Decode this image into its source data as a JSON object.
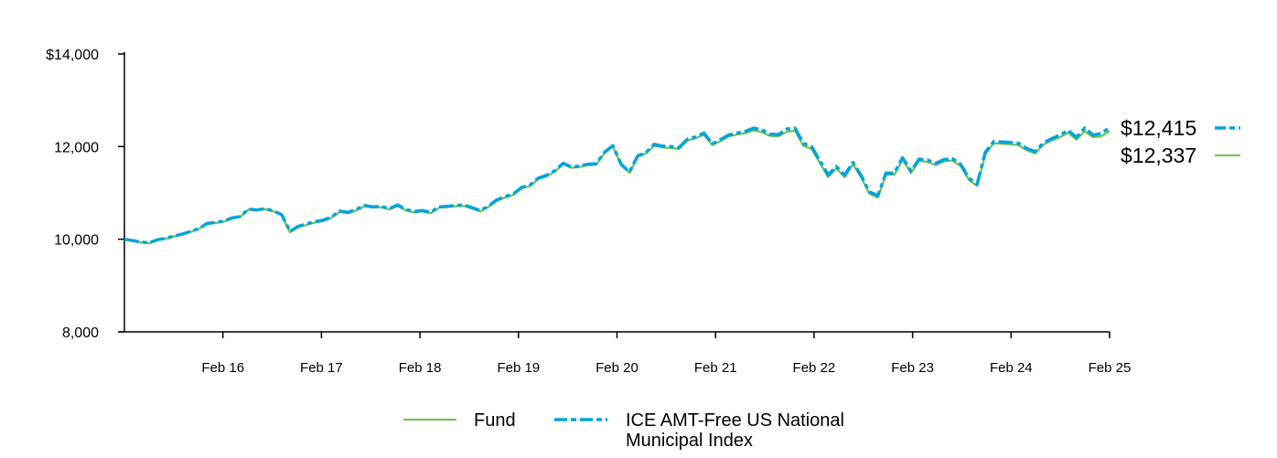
{
  "chart_data": {
    "type": "line",
    "title": "",
    "xlabel": "",
    "ylabel": "",
    "ylim": [
      8000,
      14000
    ],
    "y_ticks": [
      {
        "value": 8000,
        "label": "8,000"
      },
      {
        "value": 10000,
        "label": "10,000"
      },
      {
        "value": 12000,
        "label": "12,000"
      },
      {
        "value": 14000,
        "label": "$14,000"
      }
    ],
    "x_range": [
      0,
      120
    ],
    "x_ticks": [
      {
        "value": 12,
        "label": "Feb 16"
      },
      {
        "value": 24,
        "label": "Feb 17"
      },
      {
        "value": 36,
        "label": "Feb 18"
      },
      {
        "value": 48,
        "label": "Feb 19"
      },
      {
        "value": 60,
        "label": "Feb 20"
      },
      {
        "value": 72,
        "label": "Feb 21"
      },
      {
        "value": 84,
        "label": "Feb 22"
      },
      {
        "value": 96,
        "label": "Feb 23"
      },
      {
        "value": 108,
        "label": "Feb 24"
      },
      {
        "value": 120,
        "label": "Feb 25"
      }
    ],
    "series": [
      {
        "name": "Fund",
        "color": "#6cc24a",
        "style": "solid",
        "end_label": "$12,337",
        "values": [
          10000,
          9960,
          9930,
          9910,
          9980,
          10010,
          10060,
          10100,
          10160,
          10220,
          10330,
          10350,
          10380,
          10450,
          10480,
          10640,
          10620,
          10650,
          10600,
          10520,
          10150,
          10260,
          10310,
          10360,
          10390,
          10460,
          10590,
          10560,
          10620,
          10710,
          10680,
          10690,
          10640,
          10720,
          10620,
          10580,
          10600,
          10560,
          10680,
          10690,
          10710,
          10720,
          10660,
          10600,
          10700,
          10830,
          10900,
          10960,
          11100,
          11150,
          11300,
          11360,
          11460,
          11620,
          11540,
          11560,
          11600,
          11610,
          11860,
          12000,
          11600,
          11430,
          11780,
          11850,
          12020,
          11980,
          11970,
          11950,
          12130,
          12180,
          12260,
          12030,
          12120,
          12220,
          12260,
          12290,
          12350,
          12310,
          12230,
          12220,
          12320,
          12340,
          12020,
          11950,
          11650,
          11340,
          11530,
          11340,
          11620,
          11330,
          10980,
          10900,
          11390,
          11390,
          11720,
          11430,
          11690,
          11670,
          11600,
          11680,
          11700,
          11580,
          11280,
          11150,
          11840,
          12070,
          12060,
          12050,
          12030,
          11920,
          11850,
          12040,
          12130,
          12200,
          12300,
          12150,
          12330,
          12200,
          12220,
          12337
        ]
      },
      {
        "name": "ICE AMT-Free US National Municipal Index",
        "color": "#00a3e0",
        "style": "dashed",
        "end_label": "$12,415",
        "values": [
          10000,
          9970,
          9940,
          9920,
          9990,
          10020,
          10070,
          10110,
          10170,
          10230,
          10340,
          10360,
          10390,
          10460,
          10490,
          10650,
          10630,
          10660,
          10610,
          10530,
          10170,
          10280,
          10330,
          10380,
          10410,
          10480,
          10610,
          10580,
          10640,
          10730,
          10700,
          10710,
          10660,
          10740,
          10640,
          10600,
          10620,
          10580,
          10700,
          10710,
          10730,
          10740,
          10680,
          10620,
          10720,
          10850,
          10920,
          10980,
          11120,
          11170,
          11320,
          11380,
          11480,
          11640,
          11560,
          11580,
          11620,
          11630,
          11880,
          12020,
          11620,
          11450,
          11800,
          11870,
          12050,
          12010,
          12000,
          11980,
          12160,
          12210,
          12290,
          12060,
          12150,
          12250,
          12290,
          12330,
          12400,
          12360,
          12270,
          12260,
          12380,
          12400,
          12070,
          12000,
          11700,
          11390,
          11570,
          11380,
          11660,
          11370,
          11020,
          10940,
          11430,
          11430,
          11760,
          11470,
          11730,
          11710,
          11640,
          11720,
          11740,
          11620,
          11320,
          11190,
          11880,
          12110,
          12100,
          12090,
          12070,
          11960,
          11890,
          12080,
          12170,
          12250,
          12350,
          12200,
          12400,
          12250,
          12280,
          12415
        ]
      }
    ]
  }
}
